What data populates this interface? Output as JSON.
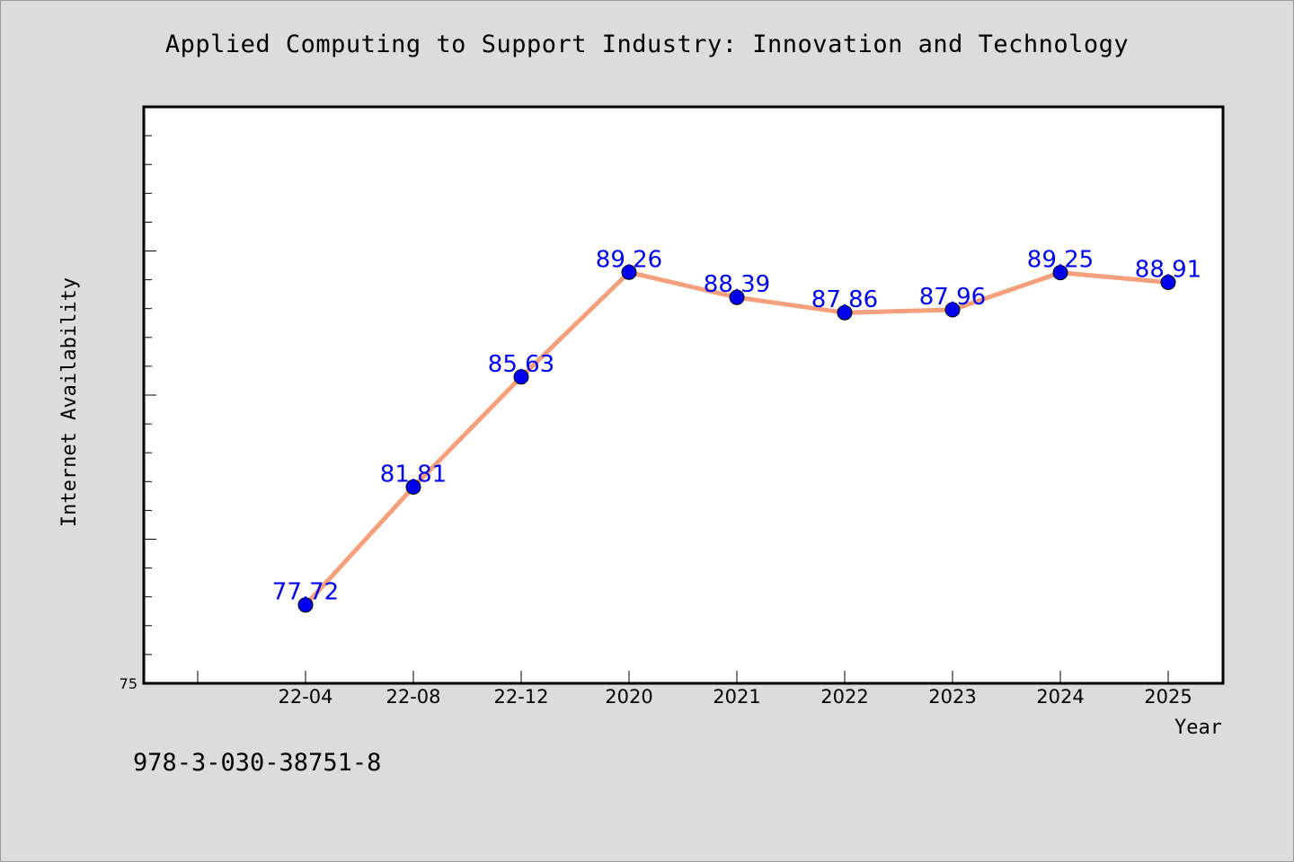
{
  "chart_data": {
    "type": "line",
    "title": "Applied Computing to Support Industry: Innovation and Technology",
    "xlabel": "Year",
    "ylabel": "Internet Availability",
    "categories": [
      "22-04",
      "22-08",
      "22-12",
      "2020",
      "2021",
      "2022",
      "2023",
      "2024",
      "2025"
    ],
    "series": [
      {
        "values": [
          77.72,
          81.81,
          85.63,
          89.26,
          88.39,
          87.86,
          87.96,
          89.25,
          88.91
        ],
        "data_labels": [
          "77.72",
          "81.81",
          "85.63",
          "89.26",
          "88.39",
          "87.86",
          "87.96",
          "89.25",
          "88.91"
        ],
        "line_color": "#f4a07c",
        "marker_color": "#0000ee",
        "label_color": "#0000ee"
      }
    ],
    "y_tick_labels": [
      "75"
    ],
    "ylim": [
      75,
      95
    ],
    "grid": false,
    "legend": "none",
    "plot_background": "#ffffff"
  },
  "footer": {
    "code": "978-3-030-38751-8"
  }
}
